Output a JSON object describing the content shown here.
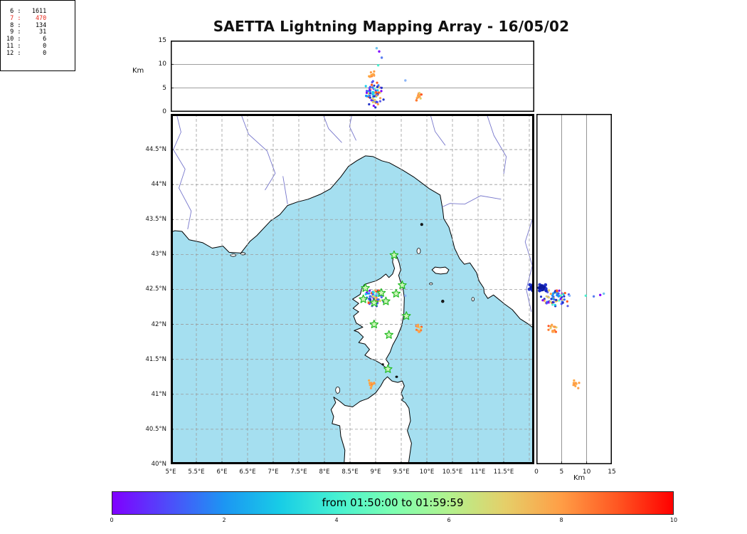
{
  "title": "SAETTA Lightning Mapping Array - 16/05/02",
  "axes": {
    "alt_label_left": "Km",
    "alt_label_right": "Km",
    "top_alt_ticks": [
      {
        "v": 0,
        "t": "0"
      },
      {
        "v": 5,
        "t": "5"
      },
      {
        "v": 10,
        "t": "10"
      },
      {
        "v": 15,
        "t": "15"
      }
    ],
    "right_alt_ticks": [
      {
        "v": 0,
        "t": "0"
      },
      {
        "v": 5,
        "t": "5"
      },
      {
        "v": 10,
        "t": "10"
      },
      {
        "v": 15,
        "t": "15"
      }
    ],
    "lat_ticks": [
      {
        "v": 40,
        "t": "40°N"
      },
      {
        "v": 40.5,
        "t": "40.5°N"
      },
      {
        "v": 41,
        "t": "41°N"
      },
      {
        "v": 41.5,
        "t": "41.5°N"
      },
      {
        "v": 42,
        "t": "42°N"
      },
      {
        "v": 42.5,
        "t": "42.5°N"
      },
      {
        "v": 43,
        "t": "43°N"
      },
      {
        "v": 43.5,
        "t": "43.5°N"
      },
      {
        "v": 44,
        "t": "44°N"
      },
      {
        "v": 44.5,
        "t": "44.5°N"
      }
    ],
    "lon_ticks": [
      {
        "v": 5,
        "t": "5°E"
      },
      {
        "v": 5.5,
        "t": "5.5°E"
      },
      {
        "v": 6,
        "t": "6°E"
      },
      {
        "v": 6.5,
        "t": "6.5°E"
      },
      {
        "v": 7,
        "t": "7°E"
      },
      {
        "v": 7.5,
        "t": "7.5°E"
      },
      {
        "v": 8,
        "t": "8°E"
      },
      {
        "v": 8.5,
        "t": "8.5°E"
      },
      {
        "v": 9,
        "t": "9°E"
      },
      {
        "v": 9.5,
        "t": "9.5°E"
      },
      {
        "v": 10,
        "t": "10°E"
      },
      {
        "v": 10.5,
        "t": "10.5°E"
      },
      {
        "v": 11,
        "t": "11°E"
      },
      {
        "v": 11.5,
        "t": "11.5°E"
      }
    ]
  },
  "stats_panel": {
    "highlight_level": "7",
    "highlight_color": "#e8291c",
    "text_color": "#000000"
  },
  "colorbar": {
    "label": "from 01:50:00 to 01:59:59",
    "ticks": [
      {
        "v": 0,
        "t": "0"
      },
      {
        "v": 2,
        "t": "2"
      },
      {
        "v": 4,
        "t": "4"
      },
      {
        "v": 6,
        "t": "6"
      },
      {
        "v": 8,
        "t": "8"
      },
      {
        "v": 10,
        "t": "10"
      }
    ],
    "gradient_stops": [
      {
        "p": 0,
        "c": "#8000ff"
      },
      {
        "p": 0.1,
        "c": "#4e4cfa"
      },
      {
        "p": 0.2,
        "c": "#1c96f3"
      },
      {
        "p": 0.3,
        "c": "#18cde6"
      },
      {
        "p": 0.4,
        "c": "#46f1d2"
      },
      {
        "p": 0.5,
        "c": "#7dffb2"
      },
      {
        "p": 0.6,
        "c": "#b2f28e"
      },
      {
        "p": 0.7,
        "c": "#e5cf69"
      },
      {
        "p": 0.8,
        "c": "#ff9e46"
      },
      {
        "p": 0.9,
        "c": "#ff5722"
      },
      {
        "p": 1,
        "c": "#ff0000"
      }
    ]
  },
  "colors": {
    "sea": "#a5dff0",
    "land": "#ffffff",
    "coast": "#000000",
    "river": "#7777cc",
    "grid": "#9b9b9b",
    "panel_line": "#666666",
    "frame": "#000000",
    "island_dark": "#222222",
    "station_fill": "#ccf5b8",
    "station_edge": "#22bb22"
  },
  "chart_data": {
    "type": "scatter",
    "title": "SAETTA Lightning Mapping Array - 16/05/02",
    "time_window": "from 01:50:00 to 01:59:59",
    "colorbar_range": [
      0,
      10
    ],
    "panels": [
      {
        "id": "top",
        "x_axis": "longitude_deg_E",
        "y_axis": "altitude_km",
        "xlim": [
          5,
          12.1
        ],
        "ylim": [
          0,
          15
        ]
      },
      {
        "id": "map",
        "x_axis": "longitude_deg_E",
        "y_axis": "latitude_deg_N",
        "xlim": [
          5,
          12.1
        ],
        "ylim": [
          40,
          45.0
        ]
      },
      {
        "id": "right",
        "x_axis": "altitude_km",
        "y_axis": "latitude_deg_N",
        "xlim": [
          0,
          15
        ],
        "ylim": [
          40,
          45.0
        ]
      }
    ],
    "source_counts": [
      {
        "level": "6",
        "count": "1611"
      },
      {
        "level": "7",
        "count": "470"
      },
      {
        "level": "8",
        "count": "134"
      },
      {
        "level": "9",
        "count": "31"
      },
      {
        "level": "10",
        "count": "6"
      },
      {
        "level": "11",
        "count": "0"
      },
      {
        "level": "12",
        "count": "0"
      }
    ],
    "stations_lon_lat": [
      [
        9.36,
        42.99
      ],
      [
        9.52,
        42.56
      ],
      [
        8.8,
        42.52
      ],
      [
        9.11,
        42.45
      ],
      [
        9.4,
        42.44
      ],
      [
        8.76,
        42.36
      ],
      [
        8.97,
        42.31
      ],
      [
        9.2,
        42.33
      ],
      [
        9.6,
        42.12
      ],
      [
        8.97,
        42.0
      ],
      [
        9.26,
        41.85
      ],
      [
        9.24,
        41.36
      ]
    ],
    "clusters": [
      {
        "name": "main-storm-north-corsica",
        "lon": [
          8.78,
          9.16
        ],
        "lat": [
          42.24,
          42.52
        ],
        "alt_km": [
          0.8,
          7.2
        ],
        "n": 72,
        "size": 1.6,
        "palette": [
          "#2334c8",
          "#2334c8",
          "#4d4ffa",
          "#4d4ffa",
          "#5a5ae6",
          "#3b6ff5",
          "#1996f2",
          "#1996f2",
          "#19cde6",
          "#4df1d2",
          "#8000ff",
          "#ff9e46",
          "#e5cf69",
          "#ff5722"
        ]
      },
      {
        "name": "east-coast-orange",
        "lon": [
          9.76,
          9.92
        ],
        "lat": [
          41.88,
          42.04
        ],
        "alt_km": [
          1.8,
          4.6
        ],
        "n": 14,
        "size": 1.6,
        "palette": [
          "#ff9e46",
          "#ff7a2e",
          "#ff5722",
          "#ffb25e",
          "#e5cf69"
        ]
      },
      {
        "name": "south-strait-orange",
        "lon": [
          8.84,
          8.99
        ],
        "lat": [
          41.08,
          41.21
        ],
        "alt_km": [
          6.4,
          8.7
        ],
        "n": 11,
        "size": 1.6,
        "palette": [
          "#ff9e46",
          "#ff7a2e",
          "#ffa640"
        ]
      },
      {
        "name": "east-edge-navy-blob",
        "lon": [
          11.99,
          12.16
        ],
        "lat": [
          42.46,
          42.6
        ],
        "alt_km": [
          0.2,
          2.0
        ],
        "n": 30,
        "size": 2.3,
        "panels": [
          "map",
          "right"
        ],
        "palette": [
          "#0d1a9e",
          "#1426c8",
          "#2334c8"
        ]
      }
    ],
    "extra_points": [
      {
        "lon": 9.07,
        "lat": 42.42,
        "alt_km": 12.7,
        "color": "#8000ff"
      },
      {
        "lon": 9.12,
        "lat": 42.4,
        "alt_km": 11.4,
        "color": "#5a7df0"
      },
      {
        "lon": 9.02,
        "lat": 42.44,
        "alt_km": 13.4,
        "color": "#6fc3ee"
      },
      {
        "lon": 9.05,
        "lat": 42.41,
        "alt_km": 9.8,
        "color": "#4df1d2"
      },
      {
        "lon": 9.58,
        "lat": 42.41,
        "alt_km": 6.6,
        "color": "#8ab4f8"
      }
    ]
  }
}
